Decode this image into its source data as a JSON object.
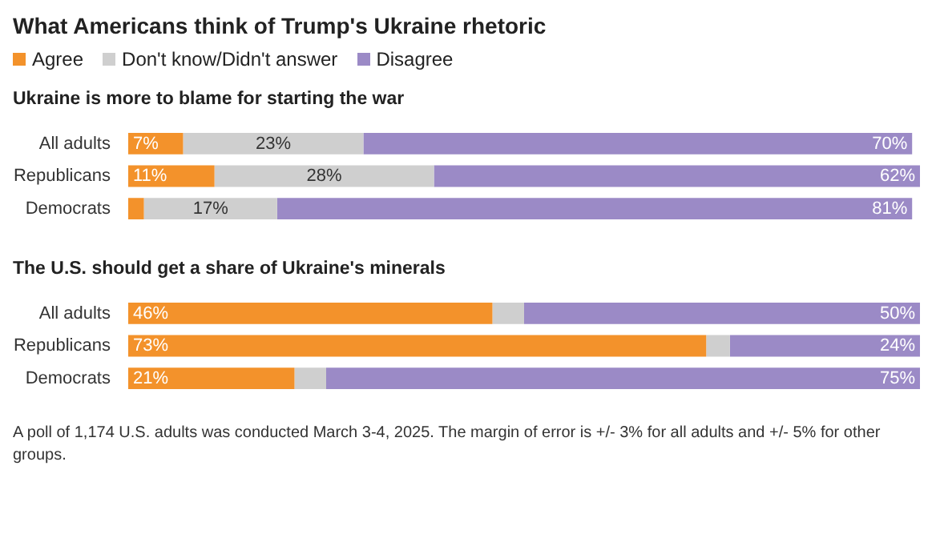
{
  "chart_data": [
    {
      "type": "bar",
      "title": "What Americans think of Trump's Ukraine rhetoric",
      "subtitle": "Ukraine is more to blame for starting the war",
      "orientation": "horizontal",
      "stacked": true,
      "legend": "top left",
      "tick_labels": "y",
      "xlim": [
        0,
        101
      ],
      "categories": [
        "All adults",
        "Republicans",
        "Democrats"
      ],
      "series": [
        {
          "name": "Agree",
          "color": "#f3922b",
          "values": [
            7,
            11,
            2
          ],
          "value_labels": [
            "7%",
            "11%",
            null
          ]
        },
        {
          "name": "Don't know/Didn't answer",
          "color": "#cfcfcf",
          "values": [
            23,
            28,
            17
          ],
          "value_labels": [
            "23%",
            "28%",
            "17%"
          ]
        },
        {
          "name": "Disagree",
          "color": "#9b8ac6",
          "values": [
            70,
            62,
            81
          ],
          "value_labels": [
            "70%",
            "62%",
            "81%"
          ]
        }
      ]
    },
    {
      "type": "bar",
      "subtitle": "The U.S. should get a share of Ukraine's minerals",
      "orientation": "horizontal",
      "stacked": true,
      "legend": false,
      "tick_labels": "y",
      "xlim": [
        0,
        100
      ],
      "categories": [
        "All adults",
        "Republicans",
        "Democrats"
      ],
      "series": [
        {
          "color": "#f3922b",
          "values": [
            46,
            73,
            21
          ],
          "value_labels": [
            "46%",
            "73%",
            "21%"
          ]
        },
        {
          "color": "#cfcfcf",
          "values": [
            4,
            3,
            4
          ],
          "value_labels": [
            null,
            null,
            null
          ]
        },
        {
          "color": "#9b8ac6",
          "values": [
            50,
            24,
            75
          ],
          "value_labels": [
            "50%",
            "24%",
            "75%"
          ]
        }
      ],
      "annotations": [
        "A poll of 1,174 U.S. adults was conducted March 3-4, 2025. The margin of error is +/- 3% for all adults and +/- 5% for other groups."
      ]
    }
  ]
}
